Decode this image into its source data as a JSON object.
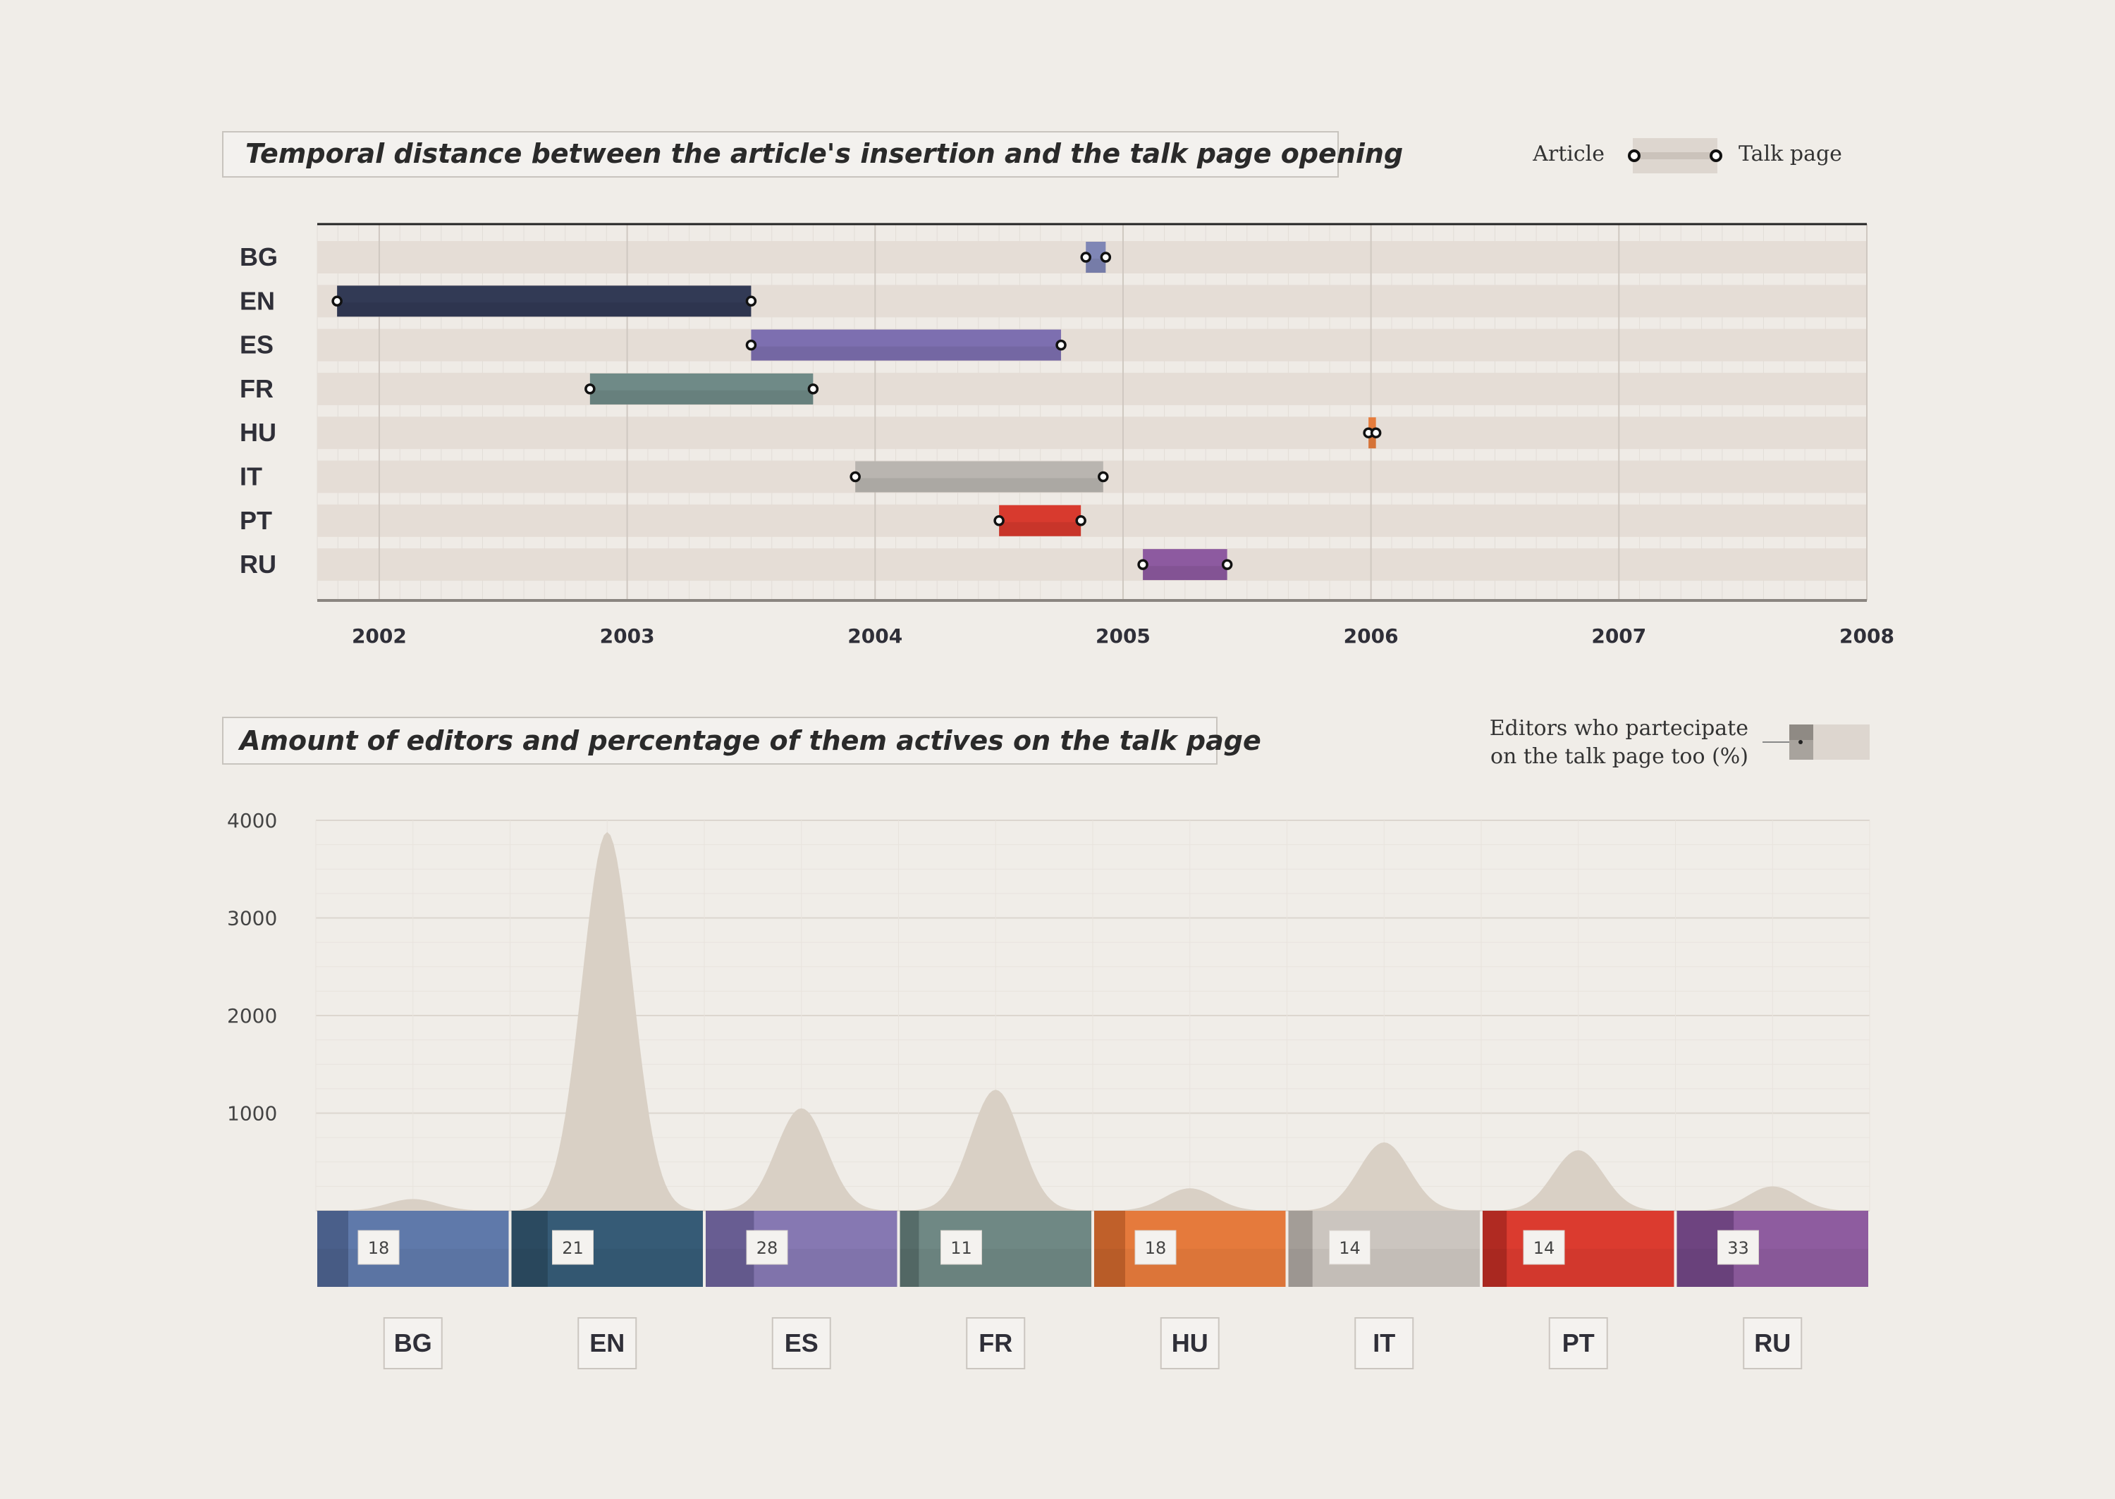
{
  "chart_data": [
    {
      "type": "range-bar",
      "title": "Temporal distance between the article's insertion and the talk page opening",
      "legend": {
        "start_label": "Article",
        "end_label": "Talk page",
        "placement": "top-right"
      },
      "x_ticks": [
        "2002",
        "2003",
        "2004",
        "2005",
        "2006",
        "2007",
        "2008"
      ],
      "xlim": [
        2001.75,
        2008.0
      ],
      "categories": [
        "BG",
        "EN",
        "ES",
        "FR",
        "HU",
        "IT",
        "PT",
        "RU"
      ],
      "series": [
        {
          "category": "BG",
          "start": 2004.85,
          "end": 2004.93,
          "color": "#7f86b5"
        },
        {
          "category": "EN",
          "start": 2001.83,
          "end": 2003.5,
          "color": "#323a55"
        },
        {
          "category": "ES",
          "start": 2003.5,
          "end": 2004.75,
          "color": "#7d6fb0"
        },
        {
          "category": "FR",
          "start": 2002.85,
          "end": 2003.75,
          "color": "#6f8a87"
        },
        {
          "category": "HU",
          "start": 2005.99,
          "end": 2006.02,
          "color": "#e67c3c"
        },
        {
          "category": "IT",
          "start": 2003.92,
          "end": 2004.92,
          "color": "#b9b5b0"
        },
        {
          "category": "PT",
          "start": 2004.5,
          "end": 2004.83,
          "color": "#d83a2e"
        },
        {
          "category": "RU",
          "start": 2005.08,
          "end": 2005.42,
          "color": "#8d5aa0"
        }
      ]
    },
    {
      "type": "area",
      "title": "Amount of editors and percentage of them actives on the talk page",
      "legend": {
        "label": "Editors who partecipate on the talk page too (%)",
        "placement": "top-right"
      },
      "y_ticks": [
        "4000",
        "3000",
        "2000",
        "1000"
      ],
      "ylim": [
        0,
        4000
      ],
      "categories": [
        "BG",
        "EN",
        "ES",
        "FR",
        "HU",
        "IT",
        "PT",
        "RU"
      ],
      "series": [
        {
          "category": "BG",
          "editors": 120,
          "percent": "18",
          "color": "#5f79aa",
          "dark": "#4a5f8a"
        },
        {
          "category": "EN",
          "editors": 3880,
          "percent": "21",
          "color": "#365b76",
          "dark": "#2b4a60"
        },
        {
          "category": "ES",
          "editors": 1050,
          "percent": "28",
          "color": "#8678b2",
          "dark": "#685d92"
        },
        {
          "category": "FR",
          "editors": 1240,
          "percent": "11",
          "color": "#6f8884",
          "dark": "#566c69"
        },
        {
          "category": "HU",
          "editors": 230,
          "percent": "18",
          "color": "#e57a3c",
          "dark": "#c0602a"
        },
        {
          "category": "IT",
          "editors": 700,
          "percent": "14",
          "color": "#cbc5bf",
          "dark": "#a39d97"
        },
        {
          "category": "PT",
          "editors": 620,
          "percent": "14",
          "color": "#db3b2f",
          "dark": "#b02a22"
        },
        {
          "category": "RU",
          "editors": 250,
          "percent": "33",
          "color": "#8e5c9f",
          "dark": "#6e4480"
        }
      ]
    }
  ]
}
